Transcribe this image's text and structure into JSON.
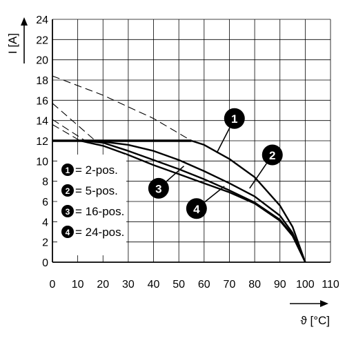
{
  "chart_data": {
    "type": "line",
    "xlabel": "ϑ [°C]",
    "ylabel": "I [A]",
    "xlim": [
      0,
      110
    ],
    "ylim": [
      0,
      24
    ],
    "x_ticks": [
      "0",
      "10",
      "20",
      "30",
      "40",
      "50",
      "60",
      "70",
      "80",
      "90",
      "100",
      "110"
    ],
    "y_ticks": [
      "0",
      "2",
      "4",
      "6",
      "8",
      "10",
      "12",
      "14",
      "16",
      "18",
      "20",
      "22",
      "24"
    ],
    "grid": true,
    "legend_position": "left",
    "legend": [
      {
        "marker": "1",
        "label": "= 2-pos."
      },
      {
        "marker": "2",
        "label": "= 5-pos."
      },
      {
        "marker": "3",
        "label": "= 16-pos."
      },
      {
        "marker": "4",
        "label": "= 24-pos."
      }
    ],
    "series": [
      {
        "marker": "1",
        "limit": 12,
        "solid": [
          [
            55,
            12
          ],
          [
            60,
            11.6
          ],
          [
            70,
            10.2
          ],
          [
            80,
            8.4
          ],
          [
            90,
            5.6
          ],
          [
            95,
            3.5
          ],
          [
            100,
            0
          ]
        ],
        "dashed": [
          [
            0,
            18.4
          ],
          [
            20,
            16.5
          ],
          [
            40,
            14.2
          ],
          [
            55,
            12
          ]
        ]
      },
      {
        "marker": "2",
        "limit": 12,
        "solid": [
          [
            17,
            12
          ],
          [
            30,
            11.6
          ],
          [
            40,
            11.0
          ],
          [
            50,
            10.1
          ],
          [
            60,
            9.0
          ],
          [
            70,
            7.8
          ],
          [
            80,
            6.5
          ],
          [
            90,
            4.6
          ],
          [
            95,
            2.9
          ],
          [
            100,
            0
          ]
        ],
        "dashed": [
          [
            0,
            15.7
          ],
          [
            17,
            12
          ]
        ]
      },
      {
        "marker": "3",
        "limit": 12,
        "solid": [
          [
            13,
            12
          ],
          [
            20,
            11.8
          ],
          [
            30,
            11.0
          ],
          [
            40,
            10.1
          ],
          [
            50,
            9.2
          ],
          [
            60,
            8.2
          ],
          [
            70,
            7.1
          ],
          [
            80,
            5.9
          ],
          [
            90,
            4.2
          ],
          [
            95,
            2.7
          ],
          [
            100,
            0
          ]
        ],
        "dashed": [
          [
            0,
            14.1
          ],
          [
            13,
            12
          ]
        ]
      },
      {
        "marker": "4",
        "limit": 12,
        "solid": [
          [
            11,
            12
          ],
          [
            20,
            11.5
          ],
          [
            30,
            10.6
          ],
          [
            40,
            9.6
          ],
          [
            50,
            8.7
          ],
          [
            60,
            7.8
          ],
          [
            70,
            6.9
          ],
          [
            80,
            5.8
          ],
          [
            90,
            4.1
          ],
          [
            95,
            2.6
          ],
          [
            100,
            0
          ]
        ],
        "dashed": [
          [
            0,
            13.6
          ],
          [
            11,
            12
          ]
        ]
      }
    ],
    "callouts": [
      {
        "marker": "1",
        "at": [
          65,
          10.8
        ],
        "label_pos": [
          72,
          14.2
        ]
      },
      {
        "marker": "2",
        "at": [
          78,
          7.3
        ],
        "label_pos": [
          87,
          10.6
        ]
      },
      {
        "marker": "3",
        "at": [
          52,
          9.5
        ],
        "label_pos": [
          42,
          7.3
        ]
      },
      {
        "marker": "4",
        "at": [
          68,
          7.5
        ],
        "label_pos": [
          57,
          5.3
        ]
      }
    ]
  }
}
